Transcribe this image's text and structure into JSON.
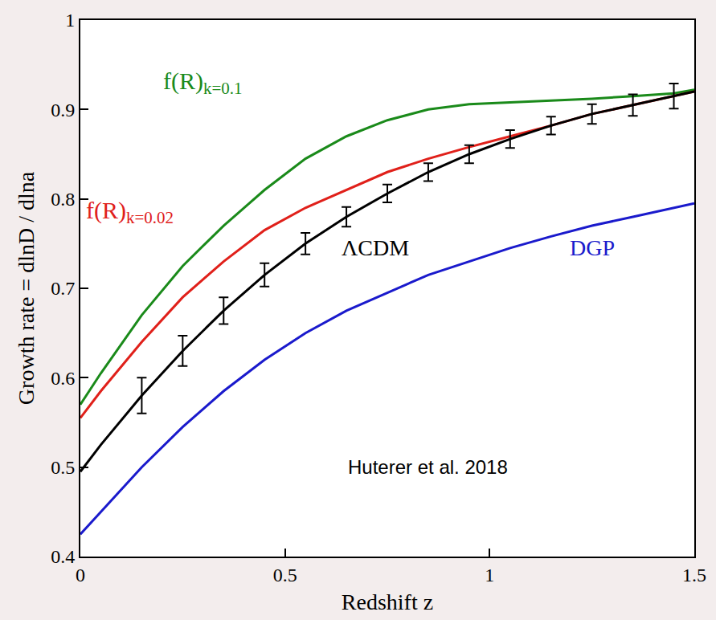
{
  "chart_data": {
    "type": "line",
    "x_label": "Redshift z",
    "y_label": "Growth rate = dlnD / dlna",
    "annotations": [
      "Huterer et al. 2018"
    ],
    "x": [
      0,
      0.05,
      0.15,
      0.25,
      0.35,
      0.45,
      0.55,
      0.65,
      0.75,
      0.85,
      0.95,
      1.05,
      1.15,
      1.25,
      1.35,
      1.45,
      1.5
    ],
    "series": [
      {
        "name": "f(R)",
        "subscript": "k=0.1",
        "color": "#1a8a1a",
        "values": [
          0.57,
          0.605,
          0.67,
          0.725,
          0.77,
          0.81,
          0.845,
          0.87,
          0.888,
          0.9,
          0.906,
          0.908,
          0.91,
          0.912,
          0.915,
          0.918,
          0.922
        ]
      },
      {
        "name": "f(R)",
        "subscript": "k=0.02",
        "color": "#e0201a",
        "values": [
          0.555,
          0.585,
          0.64,
          0.69,
          0.73,
          0.765,
          0.79,
          0.81,
          0.83,
          0.845,
          0.858,
          0.87,
          0.882,
          0.895,
          0.905,
          0.915,
          0.92
        ]
      },
      {
        "name": "ΛCDM",
        "color": "#000000",
        "values": [
          0.495,
          0.525,
          0.58,
          0.63,
          0.675,
          0.715,
          0.75,
          0.78,
          0.806,
          0.83,
          0.85,
          0.867,
          0.882,
          0.895,
          0.905,
          0.915,
          0.92
        ],
        "errors": [
          null,
          null,
          0.02,
          0.017,
          0.015,
          0.013,
          0.012,
          0.011,
          0.01,
          0.01,
          0.01,
          0.01,
          0.01,
          0.011,
          0.012,
          0.014,
          null
        ]
      },
      {
        "name": "DGP",
        "color": "#1a1acc",
        "values": [
          0.425,
          0.45,
          0.5,
          0.545,
          0.585,
          0.62,
          0.65,
          0.675,
          0.695,
          0.715,
          0.73,
          0.745,
          0.758,
          0.77,
          0.78,
          0.79,
          0.795
        ]
      }
    ],
    "xlim": [
      0,
      1.5
    ],
    "xticks": [
      0,
      0.5,
      1,
      1.5
    ],
    "ylim": [
      0.4,
      1
    ],
    "yticks": [
      0.4,
      0.5,
      0.6,
      0.7,
      0.8,
      0.9,
      1
    ],
    "grid": false
  }
}
